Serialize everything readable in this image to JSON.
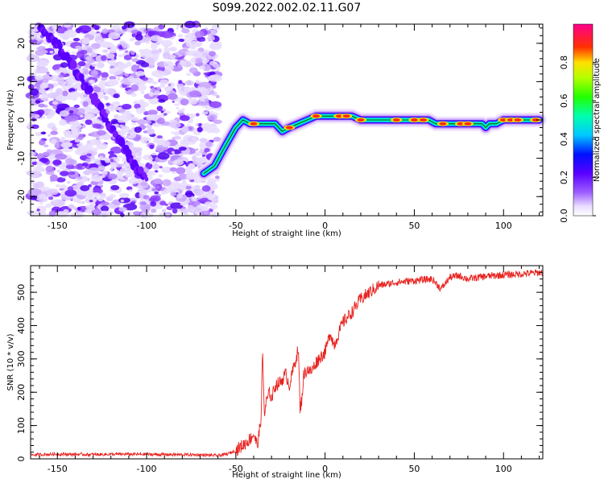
{
  "title": "S099.2022.002.02.11.G07",
  "chart_data": [
    {
      "type": "heatmap",
      "xlabel": "Height of straight line (km)",
      "ylabel": "Frequency (Hz)",
      "xlim": [
        -165,
        122
      ],
      "ylim": [
        -25,
        25
      ],
      "xticks": [
        -150,
        -100,
        -50,
        0,
        50,
        100
      ],
      "yticks": [
        -20,
        -10,
        0,
        10,
        20
      ],
      "colorbar": {
        "label": "Normalized spectral amplitude",
        "ticks": [
          0.0,
          0.2,
          0.4,
          0.6,
          0.8
        ],
        "range": [
          0,
          1
        ],
        "colormap": "rainbow: white-purple-blue-cyan-green-yellow-red-magenta"
      },
      "noise_region_x": [
        -165,
        -60
      ],
      "signal_trace": {
        "x": [
          -68,
          -62,
          -55,
          -50,
          -46,
          -42,
          -35,
          -28,
          -24,
          -20,
          -15,
          -10,
          -5,
          0,
          5,
          10,
          15,
          20,
          25,
          30,
          40,
          50,
          58,
          62,
          66,
          70,
          75,
          80,
          85,
          88,
          90,
          92,
          96,
          100,
          105,
          110,
          115,
          120
        ],
        "freq": [
          -14,
          -12,
          -6,
          -2,
          0,
          -1,
          -1,
          -1,
          -3,
          -2,
          -1,
          0,
          1,
          1,
          1,
          1,
          1,
          0,
          0,
          0,
          0,
          0,
          0,
          -1,
          -1,
          -1,
          -1,
          -1,
          -1,
          -1,
          -2,
          -1,
          -1,
          0,
          0,
          0,
          0,
          0
        ]
      },
      "secondary_trace": {
        "x": [
          -160,
          -150,
          -140,
          -130,
          -120,
          -112,
          -105,
          -100
        ],
        "freq": [
          24,
          20,
          13,
          6,
          -2,
          -8,
          -13,
          -15
        ]
      }
    },
    {
      "type": "line",
      "xlabel": "Height of straight line (km)",
      "ylabel": "SNR (10 * v/v)",
      "xlim": [
        -165,
        122
      ],
      "ylim": [
        0,
        580
      ],
      "xticks": [
        -150,
        -100,
        -50,
        0,
        50,
        100
      ],
      "yticks": [
        0,
        100,
        200,
        300,
        400,
        500
      ],
      "color": "#e8221f",
      "series": [
        {
          "x": [
            -165,
            -150,
            -130,
            -110,
            -90,
            -70,
            -60,
            -55,
            -50,
            -45,
            -42,
            -40,
            -38,
            -36,
            -35,
            -34,
            -33,
            -31,
            -30,
            -28,
            -25,
            -22,
            -20,
            -18,
            -15,
            -14,
            -13,
            -12,
            -10,
            -8,
            -5,
            -2,
            0,
            3,
            5,
            10,
            15,
            20,
            25,
            30,
            35,
            40,
            50,
            60,
            65,
            70,
            75,
            80,
            90,
            100,
            110,
            122
          ],
          "y": [
            12,
            14,
            13,
            14,
            13,
            12,
            10,
            14,
            25,
            45,
            60,
            75,
            40,
            110,
            320,
            130,
            170,
            200,
            180,
            220,
            230,
            255,
            220,
            265,
            330,
            150,
            180,
            250,
            270,
            260,
            290,
            310,
            320,
            380,
            340,
            410,
            440,
            480,
            500,
            520,
            525,
            530,
            535,
            540,
            510,
            545,
            550,
            540,
            548,
            552,
            555,
            560
          ]
        }
      ]
    }
  ]
}
